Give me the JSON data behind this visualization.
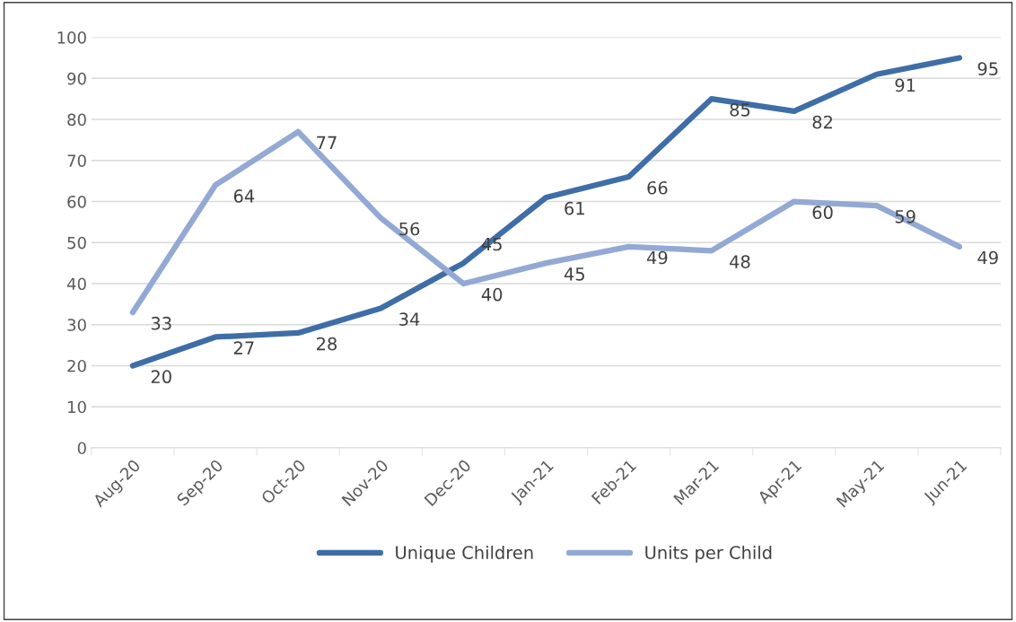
{
  "chart_data": {
    "type": "line",
    "categories": [
      "Aug-20",
      "Sep-20",
      "Oct-20",
      "Nov-20",
      "Dec-20",
      "Jan-21",
      "Feb-21",
      "Mar-21",
      "Apr-21",
      "May-21",
      "Jun-21"
    ],
    "series": [
      {
        "name": "Unique Children",
        "color": "#3f6ea6",
        "values": [
          20,
          27,
          28,
          34,
          45,
          61,
          66,
          85,
          82,
          91,
          95
        ]
      },
      {
        "name": "Units per Child",
        "color": "#93a9d4",
        "values": [
          33,
          64,
          77,
          56,
          40,
          45,
          49,
          48,
          60,
          59,
          49
        ]
      }
    ],
    "ylim": [
      0,
      100
    ],
    "yticks": [
      0,
      10,
      20,
      30,
      40,
      50,
      60,
      70,
      80,
      90,
      100
    ],
    "grid": "y",
    "legend": "bottom",
    "data_labels": true,
    "marker": "none",
    "line_style": "solid"
  }
}
